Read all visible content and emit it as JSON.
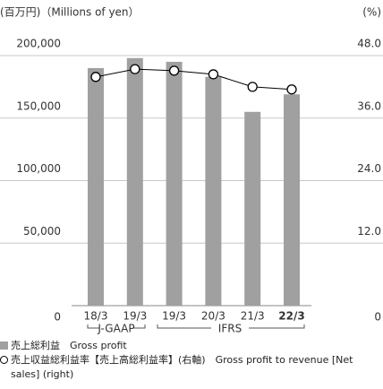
{
  "chart_data": {
    "type": "bar_line",
    "y_label": "(百万円)（Millions of yen）",
    "y2_label": "(%)",
    "categories": [
      "18/3",
      "19/3",
      "19/3",
      "20/3",
      "21/3",
      "22/3"
    ],
    "series": [
      {
        "name": "売上総利益　Gross profit",
        "type": "bar",
        "color": "#a0a0a0",
        "values": [
          190000,
          198000,
          195000,
          183000,
          155000,
          169000
        ]
      },
      {
        "name": "売上収益総利益率【売上高総利益率】(右軸)　Gross profit to revenue [Net sales] (right)",
        "type": "line",
        "axis": "y2",
        "color": "#000000",
        "values": [
          43.9,
          45.4,
          45.1,
          44.4,
          42.0,
          41.5
        ]
      }
    ],
    "annotations": [
      "J-GAAP",
      "IFRS"
    ],
    "ylim": [
      0,
      200000
    ],
    "yticks": [
      0,
      {
        "value": 50000,
        "label": "50,000"
      },
      {
        "value": 100000,
        "label": "100,000"
      },
      {
        "value": 150000,
        "label": "150,000"
      },
      {
        "value": 200000,
        "label": "200,000"
      }
    ],
    "y2lim": [
      0,
      48
    ],
    "y2ticks": [
      0,
      {
        "value": 12,
        "label": "12.0"
      },
      {
        "value": 24,
        "label": "24.0"
      },
      {
        "value": 36,
        "label": "36.0"
      },
      {
        "value": 48,
        "label": "48.0"
      }
    ],
    "grid": true
  }
}
